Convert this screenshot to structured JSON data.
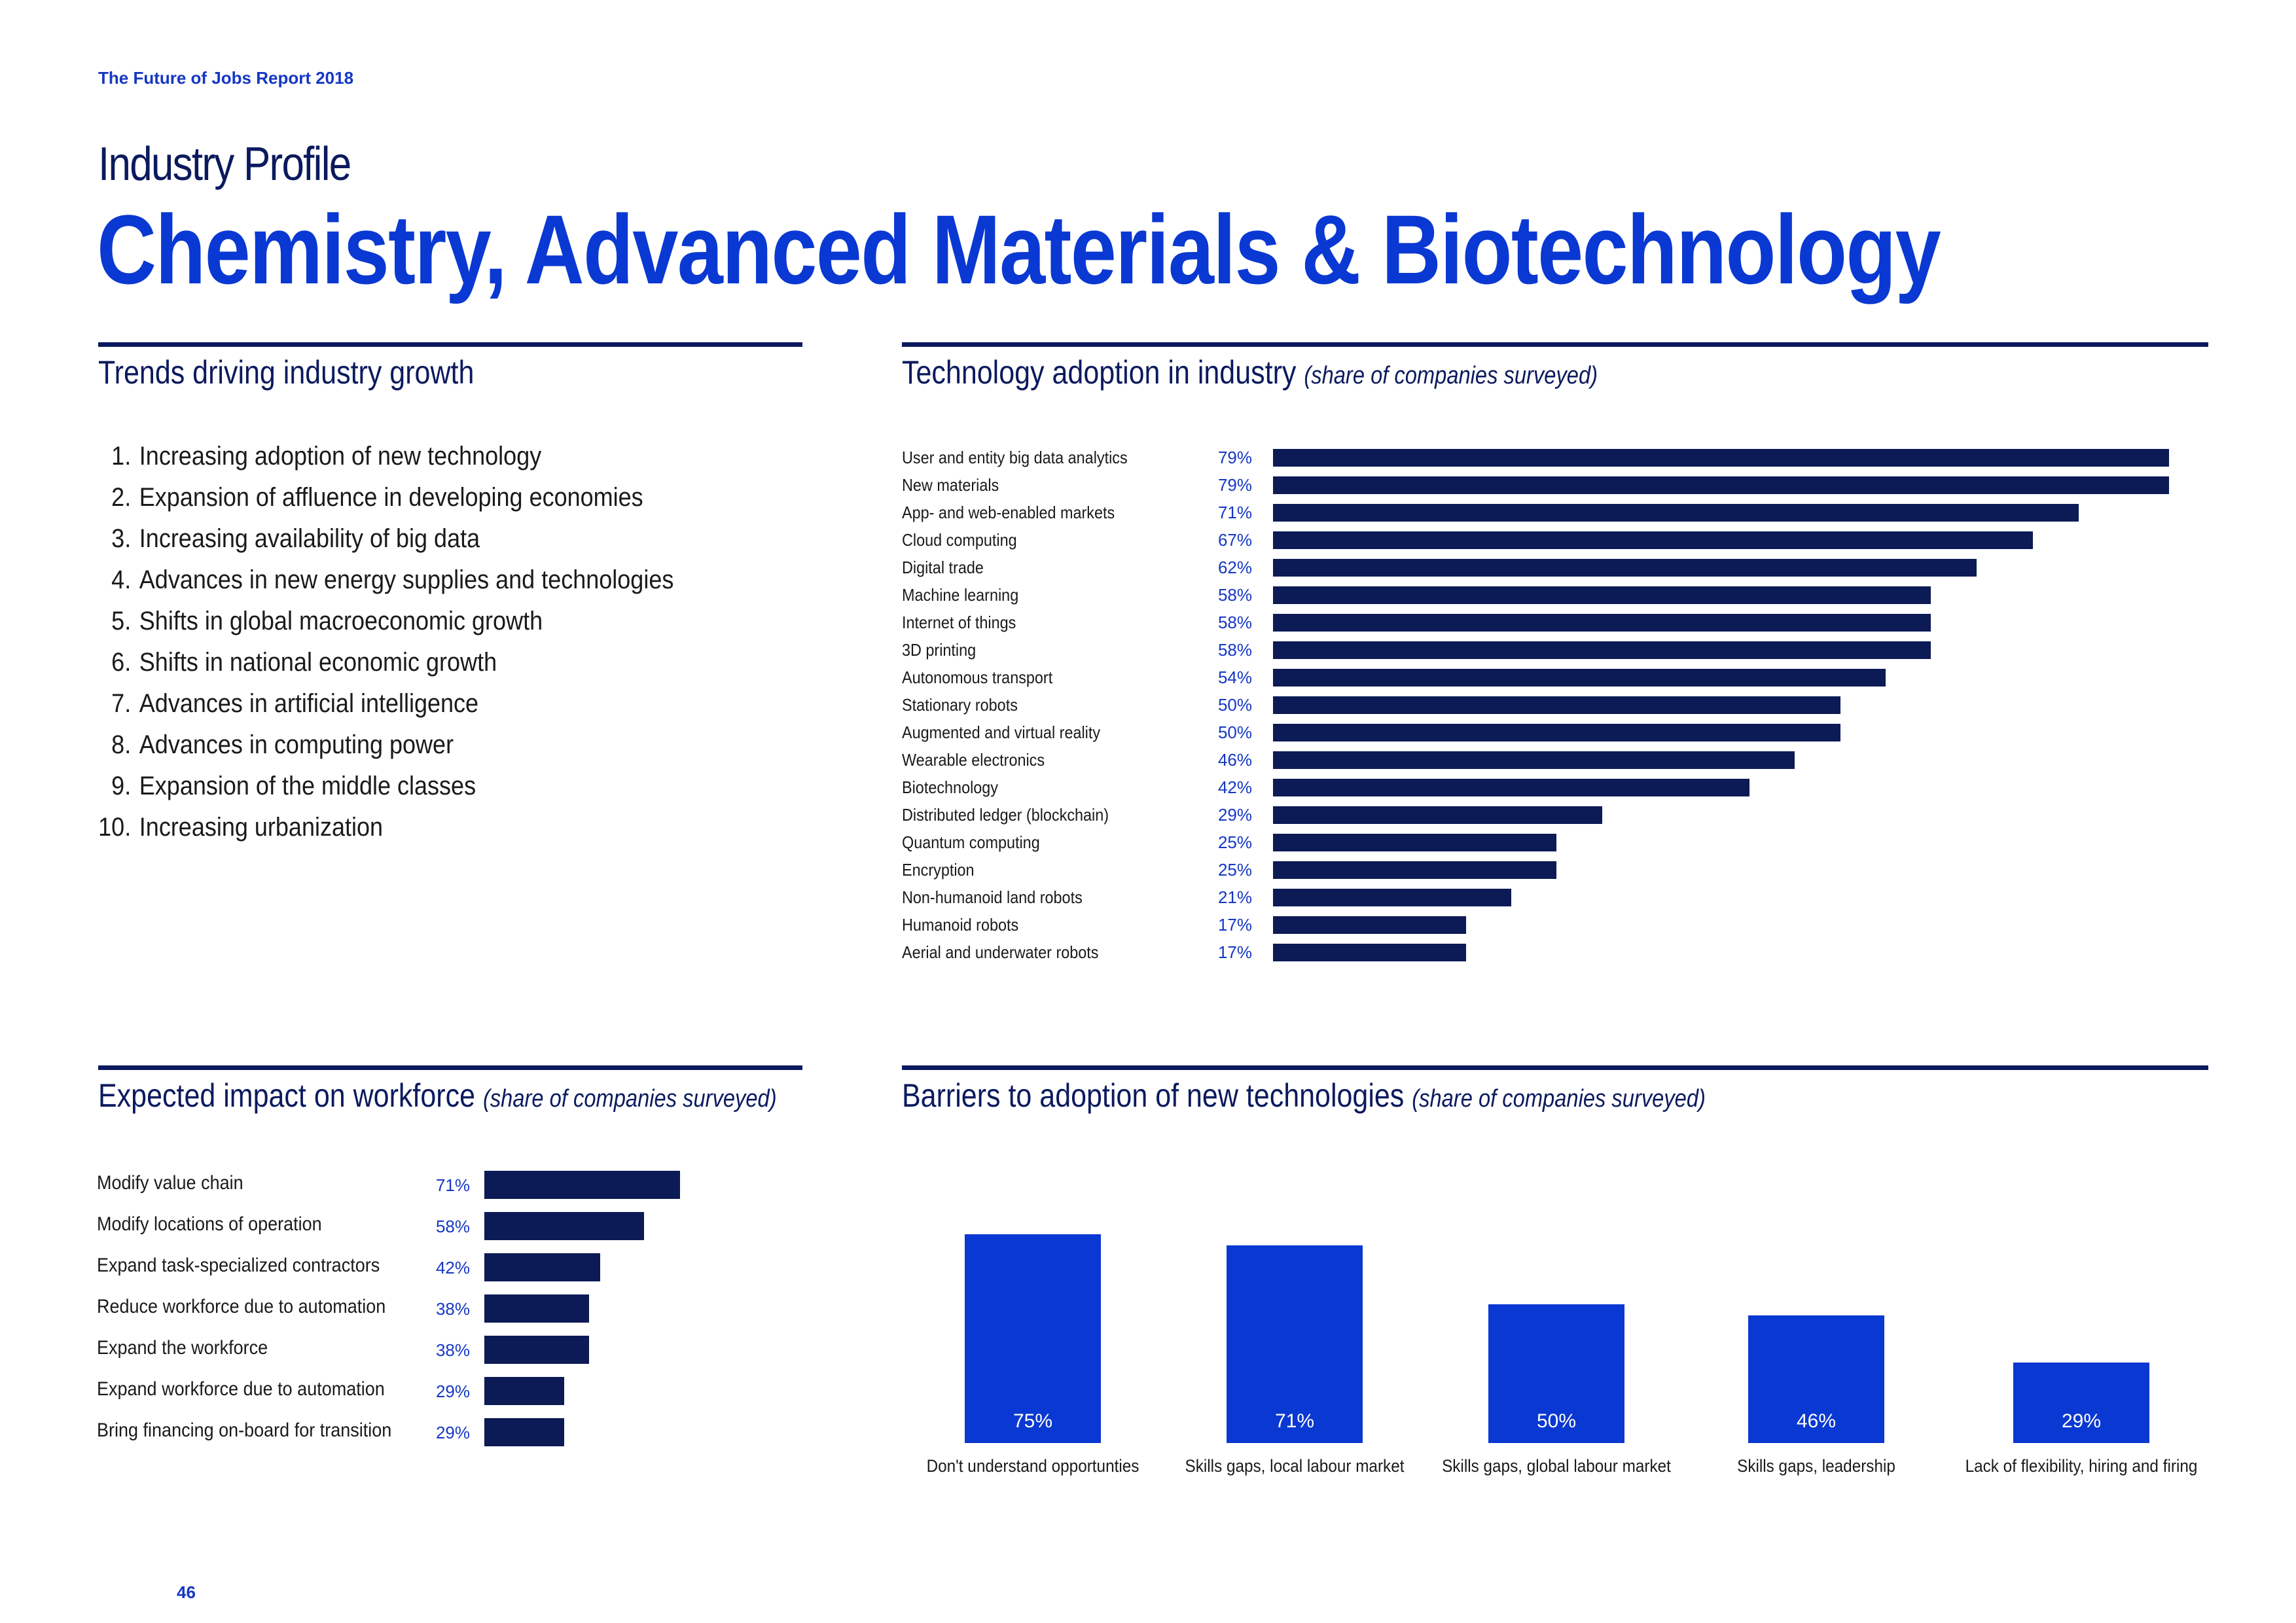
{
  "header": {
    "report_title": "The Future of Jobs Report 2018",
    "kicker": "Industry Profile",
    "headline": "Chemistry, Advanced Materials & Biotechnology"
  },
  "trends": {
    "title": "Trends driving industry growth",
    "items": [
      {
        "num": "1.",
        "label": "Increasing adoption of new technology"
      },
      {
        "num": "2.",
        "label": "Expansion of affluence in developing economies"
      },
      {
        "num": "3.",
        "label": "Increasing availability of big data"
      },
      {
        "num": "4.",
        "label": "Advances in new energy supplies and technologies"
      },
      {
        "num": "5.",
        "label": "Shifts in global macroeconomic growth"
      },
      {
        "num": "6.",
        "label": "Shifts in national economic growth"
      },
      {
        "num": "7.",
        "label": "Advances in artificial intelligence"
      },
      {
        "num": "8.",
        "label": "Advances in computing power"
      },
      {
        "num": "9.",
        "label": "Expansion of the middle classes"
      },
      {
        "num": "10.",
        "label": "Increasing urbanization"
      }
    ]
  },
  "technology": {
    "title": "Technology adoption in industry",
    "subtitle": "(share of companies surveyed)"
  },
  "workforce": {
    "title": "Expected impact on workforce",
    "subtitle": "(share of companies surveyed)"
  },
  "barriers": {
    "title": "Barriers to adoption of new technologies",
    "subtitle": "(share of companies surveyed)"
  },
  "footer": {
    "page_number": "46"
  },
  "chart_data": [
    {
      "id": "technology_adoption",
      "type": "bar",
      "orientation": "horizontal",
      "title": "Technology adoption in industry (share of companies surveyed)",
      "categories": [
        "User and entity big data analytics",
        "New materials",
        "App- and web-enabled markets",
        "Cloud computing",
        "Digital trade",
        "Machine learning",
        "Internet of things",
        "3D printing",
        "Autonomous transport",
        "Stationary robots",
        "Augmented and virtual reality",
        "Wearable electronics",
        "Biotechnology",
        "Distributed ledger (blockchain)",
        "Quantum computing",
        "Encryption",
        "Non-humanoid land robots",
        "Humanoid robots",
        "Aerial and underwater robots"
      ],
      "values": [
        79,
        79,
        71,
        67,
        62,
        58,
        58,
        58,
        54,
        50,
        50,
        46,
        42,
        29,
        25,
        25,
        21,
        17,
        17
      ],
      "labels": [
        "79%",
        "79%",
        "71%",
        "67%",
        "62%",
        "58%",
        "58%",
        "58%",
        "54%",
        "50%",
        "50%",
        "46%",
        "42%",
        "29%",
        "25%",
        "25%",
        "21%",
        "17%",
        "17%"
      ],
      "xlim": [
        0,
        82.5
      ],
      "color": "#0c1a55"
    },
    {
      "id": "workforce_impact",
      "type": "bar",
      "orientation": "horizontal",
      "title": "Expected impact on workforce (share of companies surveyed)",
      "categories": [
        "Modify value chain",
        "Modify locations of operation",
        "Expand task-specialized contractors",
        "Reduce workforce due to automation",
        "Expand the workforce",
        "Expand workforce due to automation",
        "Bring financing on-board for transition"
      ],
      "values": [
        71,
        58,
        42,
        38,
        38,
        29,
        29
      ],
      "labels": [
        "71%",
        "58%",
        "42%",
        "38%",
        "38%",
        "29%",
        "29%"
      ],
      "xlim": [
        0,
        158
      ],
      "color": "#0c1a55"
    },
    {
      "id": "barriers",
      "type": "bar",
      "orientation": "vertical",
      "title": "Barriers to adoption of new technologies (share of companies surveyed)",
      "categories": [
        "Don't understand opportunties",
        "Skills gaps, local labour market",
        "Skills gaps, global labour market",
        "Skills gaps, leadership",
        "Lack of flexibility, hiring and firing"
      ],
      "values": [
        75,
        71,
        50,
        46,
        29
      ],
      "labels": [
        "75%",
        "71%",
        "50%",
        "46%",
        "29%"
      ],
      "ylim": [
        0,
        100
      ],
      "color": "#0a38d2"
    }
  ]
}
